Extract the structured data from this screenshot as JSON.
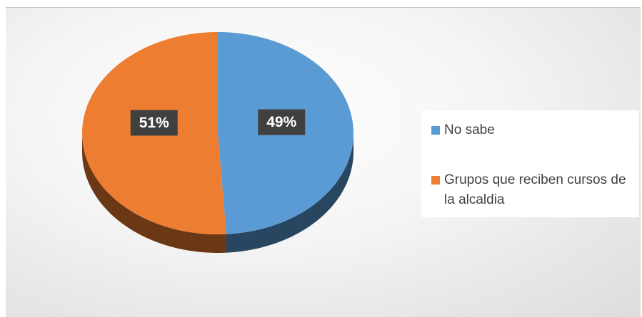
{
  "chart_data": {
    "type": "pie",
    "categories": [
      "No sabe",
      "Grupos que reciben cursos de la alcaldia"
    ],
    "values": [
      49,
      51
    ],
    "value_labels": [
      "49%",
      "51%"
    ],
    "colors": [
      "#5b9bd5",
      "#ed7d31"
    ],
    "legend": "right"
  }
}
